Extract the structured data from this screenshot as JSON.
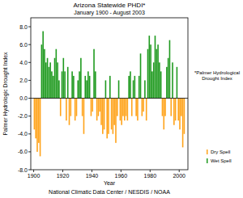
{
  "chart_data": {
    "type": "bar",
    "title": "Arizona Statewide PHDI*",
    "subtitle": "January 1900 - August 2003",
    "y_label": "Palmer Hydrologic Drought Index",
    "x_label": "Year",
    "source": "National Climatic Data Center / NESDIS / NOAA",
    "annotation": "*Palmer Hydrological Drought Index",
    "legend": "right",
    "grid": false,
    "xlim": [
      1898,
      2006
    ],
    "ylim": [
      -8,
      9
    ],
    "xticks": [
      1900,
      1920,
      1940,
      1960,
      1980,
      2000
    ],
    "yticks": [
      {
        "value": -8,
        "label": "-8.0"
      },
      {
        "value": -6,
        "label": "-6.0"
      },
      {
        "value": -4,
        "label": "-4.0"
      },
      {
        "value": -2,
        "label": "-2.0"
      },
      {
        "value": 0,
        "label": "0.0"
      },
      {
        "value": 2,
        "label": "2.0"
      },
      {
        "value": 4,
        "label": "4.0"
      },
      {
        "value": 6,
        "label": "6.0"
      },
      {
        "value": 8,
        "label": "8.0"
      }
    ],
    "x": [
      1900,
      1901,
      1902,
      1903,
      1904,
      1905,
      1906,
      1907,
      1908,
      1909,
      1910,
      1911,
      1912,
      1913,
      1914,
      1915,
      1916,
      1917,
      1918,
      1919,
      1920,
      1921,
      1922,
      1923,
      1924,
      1925,
      1926,
      1927,
      1928,
      1929,
      1930,
      1931,
      1932,
      1933,
      1934,
      1935,
      1936,
      1937,
      1938,
      1939,
      1940,
      1941,
      1942,
      1943,
      1944,
      1945,
      1946,
      1947,
      1948,
      1949,
      1950,
      1951,
      1952,
      1953,
      1954,
      1955,
      1956,
      1957,
      1958,
      1959,
      1960,
      1961,
      1962,
      1963,
      1964,
      1965,
      1966,
      1967,
      1968,
      1969,
      1970,
      1971,
      1972,
      1973,
      1974,
      1975,
      1976,
      1977,
      1978,
      1979,
      1980,
      1981,
      1982,
      1983,
      1984,
      1985,
      1986,
      1987,
      1988,
      1989,
      1990,
      1991,
      1992,
      1993,
      1994,
      1995,
      1996,
      1997,
      1998,
      1999,
      2000,
      2001,
      2002,
      2003
    ],
    "series": [
      {
        "name": "Dry Spell",
        "color": "#ffa31a",
        "values": [
          -3.5,
          -4.5,
          -6.0,
          -5.0,
          -6.5,
          null,
          null,
          null,
          null,
          null,
          null,
          null,
          null,
          null,
          null,
          null,
          null,
          null,
          -2.0,
          null,
          null,
          null,
          -2.5,
          null,
          -3.0,
          -2.0,
          null,
          null,
          -2.5,
          -2.0,
          null,
          null,
          null,
          -2.0,
          -4.0,
          null,
          null,
          null,
          null,
          -2.0,
          -1.5,
          null,
          null,
          -2.5,
          -2.0,
          -1.5,
          -3.0,
          -4.0,
          -3.5,
          null,
          -4.5,
          -4.0,
          null,
          -3.5,
          -4.0,
          -3.0,
          -5.0,
          -2.0,
          null,
          -2.5,
          -3.0,
          -2.0,
          -2.5,
          -2.0,
          -2.5,
          null,
          null,
          -2.0,
          null,
          null,
          -2.0,
          -2.5,
          null,
          null,
          -2.0,
          -1.5,
          null,
          -2.5,
          null,
          null,
          null,
          null,
          null,
          null,
          null,
          null,
          null,
          null,
          -2.0,
          -3.5,
          -2.0,
          null,
          null,
          null,
          -2.0,
          null,
          -3.0,
          -2.5,
          null,
          -2.5,
          -3.5,
          -2.0,
          -5.5,
          -4.0
        ]
      },
      {
        "name": "Wet Spell",
        "color": "#1f9a1f",
        "values": [
          null,
          null,
          null,
          null,
          null,
          6.0,
          7.5,
          5.5,
          4.0,
          4.5,
          3.5,
          4.0,
          3.0,
          2.5,
          4.5,
          5.5,
          4.0,
          2.0,
          null,
          3.0,
          4.5,
          3.0,
          null,
          3.5,
          null,
          null,
          3.0,
          2.5,
          null,
          null,
          2.0,
          3.0,
          4.5,
          null,
          null,
          2.5,
          2.0,
          3.0,
          2.5,
          null,
          null,
          5.5,
          3.0,
          null,
          null,
          null,
          null,
          null,
          null,
          2.0,
          null,
          null,
          2.5,
          null,
          null,
          null,
          null,
          null,
          2.0,
          null,
          null,
          null,
          null,
          null,
          null,
          2.5,
          3.0,
          null,
          2.0,
          2.5,
          null,
          null,
          2.5,
          5.0,
          null,
          null,
          2.0,
          null,
          5.5,
          7.0,
          6.0,
          3.0,
          4.0,
          7.0,
          5.5,
          6.0,
          4.0,
          3.0,
          null,
          null,
          null,
          3.5,
          4.5,
          6.5,
          null,
          4.0,
          null,
          null,
          3.5,
          null,
          null,
          null,
          null,
          null
        ]
      }
    ]
  }
}
